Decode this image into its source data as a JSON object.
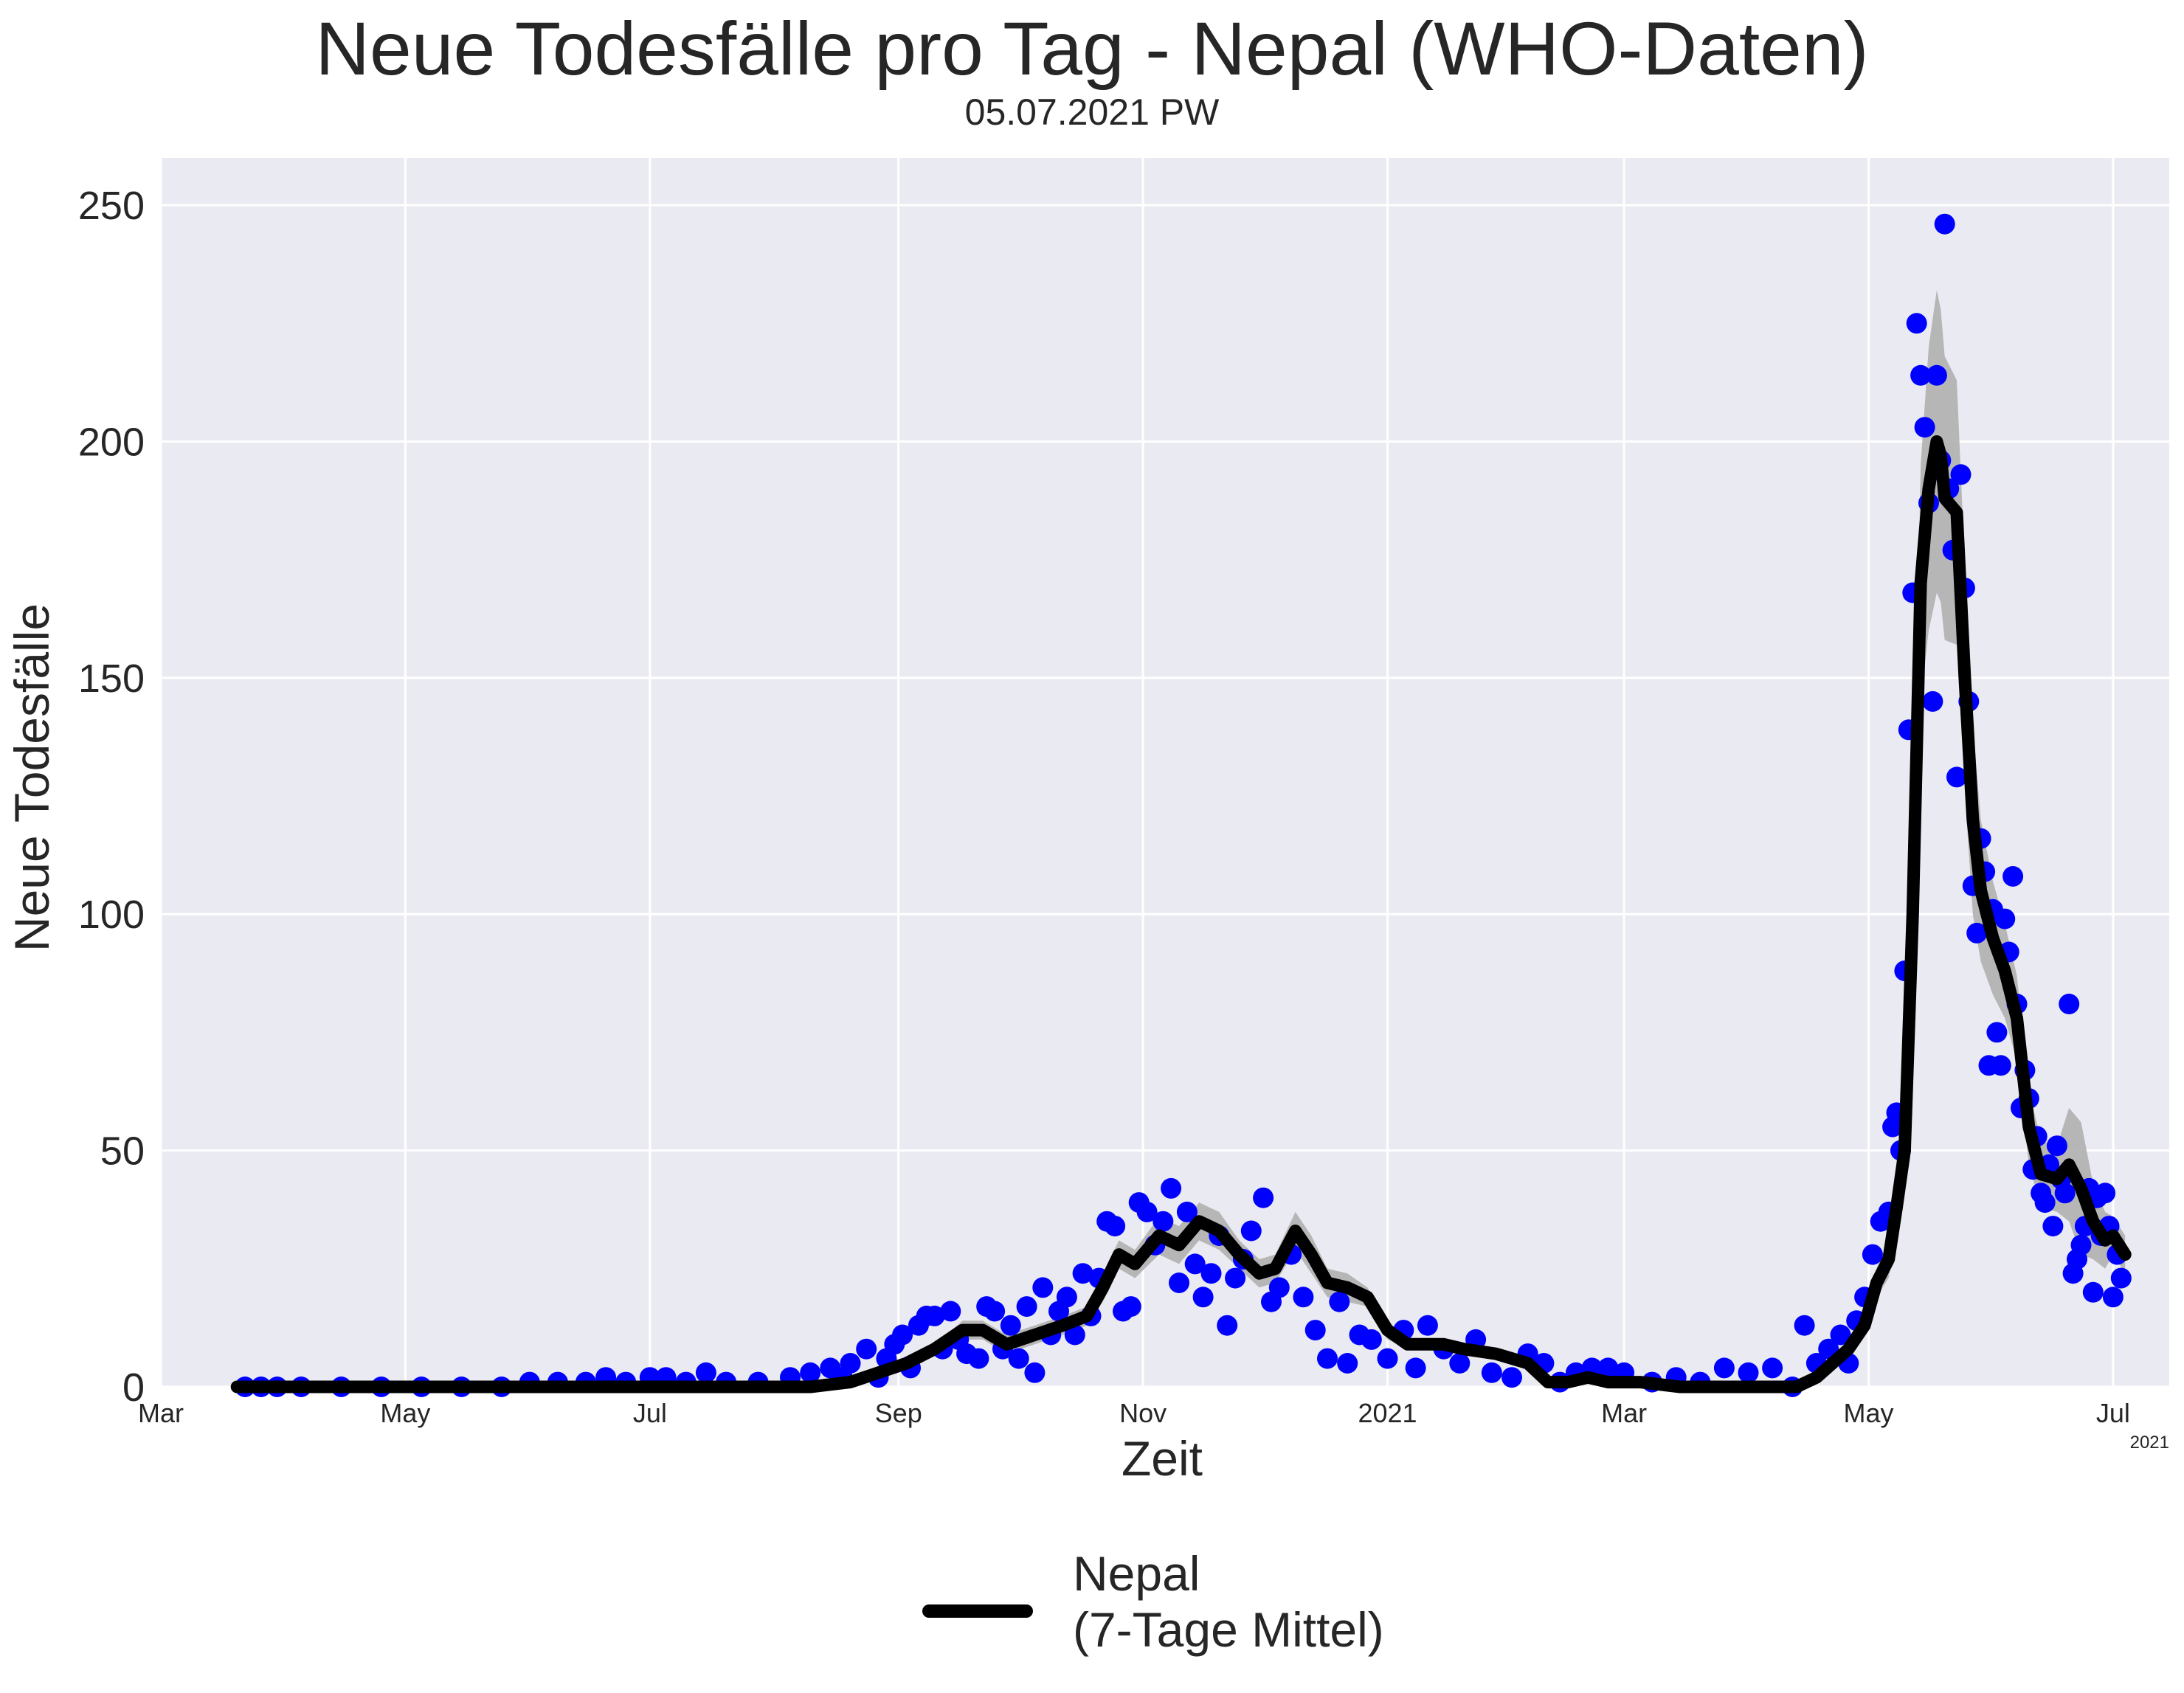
{
  "header": {
    "title": "Neue Todesfälle pro Tag - Nepal (WHO-Daten)",
    "subtitle": "05.07.2021 PW"
  },
  "legend": {
    "label": "Nepal\n(7-Tage Mittel)"
  },
  "colors": {
    "background": "#eaeaf2",
    "grid": "#ffffff",
    "points": "#0000ff",
    "line": "#000000",
    "band": "#b0b0b0"
  },
  "chart_data": {
    "type": "scatter",
    "title": "Neue Todesfälle pro Tag - Nepal (WHO-Daten)",
    "subtitle": "05.07.2021 PW",
    "xlabel": "Zeit",
    "ylabel": "Neue Todesfälle",
    "x_offset_label": "2021",
    "xlim": [
      "2020-03-01",
      "2021-07-15"
    ],
    "ylim": [
      0,
      260
    ],
    "yticks": [
      0,
      50,
      100,
      150,
      200,
      250
    ],
    "xticks": [
      {
        "date": "2020-03-01",
        "label": "Mar"
      },
      {
        "date": "2020-05-01",
        "label": "May"
      },
      {
        "date": "2020-07-01",
        "label": "Jul"
      },
      {
        "date": "2020-09-01",
        "label": "Sep"
      },
      {
        "date": "2020-11-01",
        "label": "Nov"
      },
      {
        "date": "2021-01-01",
        "label": "2021"
      },
      {
        "date": "2021-03-01",
        "label": "Mar"
      },
      {
        "date": "2021-05-01",
        "label": "May"
      },
      {
        "date": "2021-07-01",
        "label": "Jul"
      }
    ],
    "grid": true,
    "legend_position": "bottom-center",
    "series": [
      {
        "name": "Nepal\n(7-Tage Mittel)",
        "kind": "line_with_band",
        "points": [
          [
            "2020-03-20",
            0
          ],
          [
            "2020-05-15",
            0
          ],
          [
            "2020-07-15",
            0
          ],
          [
            "2020-08-10",
            0
          ],
          [
            "2020-08-20",
            1
          ],
          [
            "2020-08-27",
            3
          ],
          [
            "2020-09-03",
            5
          ],
          [
            "2020-09-10",
            8
          ],
          [
            "2020-09-17",
            12
          ],
          [
            "2020-09-22",
            12
          ],
          [
            "2020-09-28",
            9
          ],
          [
            "2020-10-05",
            11
          ],
          [
            "2020-10-12",
            13
          ],
          [
            "2020-10-18",
            15
          ],
          [
            "2020-10-22",
            21
          ],
          [
            "2020-10-26",
            28
          ],
          [
            "2020-10-30",
            26
          ],
          [
            "2020-11-05",
            32
          ],
          [
            "2020-11-10",
            30
          ],
          [
            "2020-11-15",
            35
          ],
          [
            "2020-11-20",
            33
          ],
          [
            "2020-11-25",
            28
          ],
          [
            "2020-11-30",
            24
          ],
          [
            "2020-12-04",
            25
          ],
          [
            "2020-12-09",
            33
          ],
          [
            "2020-12-13",
            28
          ],
          [
            "2020-12-17",
            22
          ],
          [
            "2020-12-22",
            21
          ],
          [
            "2020-12-27",
            19
          ],
          [
            "2021-01-01",
            12
          ],
          [
            "2021-01-06",
            9
          ],
          [
            "2021-01-15",
            9
          ],
          [
            "2021-01-20",
            8
          ],
          [
            "2021-01-28",
            7
          ],
          [
            "2021-02-05",
            5
          ],
          [
            "2021-02-10",
            1
          ],
          [
            "2021-02-15",
            1
          ],
          [
            "2021-02-20",
            2
          ],
          [
            "2021-02-25",
            1
          ],
          [
            "2021-03-05",
            1
          ],
          [
            "2021-03-15",
            0
          ],
          [
            "2021-04-01",
            0
          ],
          [
            "2021-04-13",
            0
          ],
          [
            "2021-04-18",
            2
          ],
          [
            "2021-04-22",
            5
          ],
          [
            "2021-04-26",
            8
          ],
          [
            "2021-04-30",
            13
          ],
          [
            "2021-05-03",
            22
          ],
          [
            "2021-05-06",
            27
          ],
          [
            "2021-05-08",
            38
          ],
          [
            "2021-05-10",
            50
          ],
          [
            "2021-05-12",
            100
          ],
          [
            "2021-05-14",
            170
          ],
          [
            "2021-05-16",
            190
          ],
          [
            "2021-05-18",
            200
          ],
          [
            "2021-05-19",
            197
          ],
          [
            "2021-05-20",
            188
          ],
          [
            "2021-05-23",
            185
          ],
          [
            "2021-05-25",
            150
          ],
          [
            "2021-05-27",
            120
          ],
          [
            "2021-05-29",
            105
          ],
          [
            "2021-06-01",
            95
          ],
          [
            "2021-06-04",
            88
          ],
          [
            "2021-06-07",
            78
          ],
          [
            "2021-06-10",
            55
          ],
          [
            "2021-06-13",
            45
          ],
          [
            "2021-06-17",
            44
          ],
          [
            "2021-06-20",
            47
          ],
          [
            "2021-06-23",
            42
          ],
          [
            "2021-06-26",
            35
          ],
          [
            "2021-06-29",
            31
          ],
          [
            "2021-07-01",
            32
          ],
          [
            "2021-07-04",
            28
          ]
        ],
        "band_halfwidth": [
          0,
          0,
          0,
          0,
          1,
          1,
          1,
          1,
          2,
          2,
          2,
          2,
          2,
          2,
          3,
          3,
          3,
          4,
          4,
          4,
          4,
          3,
          3,
          3,
          4,
          4,
          3,
          3,
          2,
          2,
          1,
          1,
          1,
          1,
          1,
          1,
          1,
          1,
          1,
          1,
          0,
          0,
          0,
          1,
          1,
          1,
          2,
          3,
          4,
          5,
          7,
          15,
          25,
          30,
          32,
          31,
          30,
          28,
          24,
          20,
          15,
          12,
          10,
          9,
          8,
          7,
          7,
          12,
          14,
          8,
          6,
          4,
          4
        ]
      },
      {
        "name": "",
        "kind": "scatter",
        "points": [
          [
            "2020-03-22",
            0
          ],
          [
            "2020-03-26",
            0
          ],
          [
            "2020-03-30",
            0
          ],
          [
            "2020-04-05",
            0
          ],
          [
            "2020-04-15",
            0
          ],
          [
            "2020-04-25",
            0
          ],
          [
            "2020-05-05",
            0
          ],
          [
            "2020-05-15",
            0
          ],
          [
            "2020-05-25",
            0
          ],
          [
            "2020-06-01",
            1
          ],
          [
            "2020-06-08",
            1
          ],
          [
            "2020-06-15",
            1
          ],
          [
            "2020-06-20",
            2
          ],
          [
            "2020-06-25",
            1
          ],
          [
            "2020-07-01",
            2
          ],
          [
            "2020-07-05",
            2
          ],
          [
            "2020-07-10",
            1
          ],
          [
            "2020-07-15",
            3
          ],
          [
            "2020-07-20",
            1
          ],
          [
            "2020-07-28",
            1
          ],
          [
            "2020-08-05",
            2
          ],
          [
            "2020-08-10",
            3
          ],
          [
            "2020-08-15",
            4
          ],
          [
            "2020-08-18",
            2
          ],
          [
            "2020-08-20",
            5
          ],
          [
            "2020-08-24",
            8
          ],
          [
            "2020-08-27",
            2
          ],
          [
            "2020-08-29",
            6
          ],
          [
            "2020-08-31",
            9
          ],
          [
            "2020-09-02",
            11
          ],
          [
            "2020-09-04",
            4
          ],
          [
            "2020-09-06",
            13
          ],
          [
            "2020-09-08",
            15
          ],
          [
            "2020-09-10",
            15
          ],
          [
            "2020-09-12",
            8
          ],
          [
            "2020-09-14",
            16
          ],
          [
            "2020-09-16",
            10
          ],
          [
            "2020-09-18",
            7
          ],
          [
            "2020-09-21",
            6
          ],
          [
            "2020-09-23",
            17
          ],
          [
            "2020-09-25",
            16
          ],
          [
            "2020-09-27",
            8
          ],
          [
            "2020-09-29",
            13
          ],
          [
            "2020-10-01",
            6
          ],
          [
            "2020-10-03",
            17
          ],
          [
            "2020-10-05",
            3
          ],
          [
            "2020-10-07",
            21
          ],
          [
            "2020-10-09",
            11
          ],
          [
            "2020-10-11",
            16
          ],
          [
            "2020-10-13",
            19
          ],
          [
            "2020-10-15",
            11
          ],
          [
            "2020-10-17",
            24
          ],
          [
            "2020-10-19",
            15
          ],
          [
            "2020-10-21",
            23
          ],
          [
            "2020-10-23",
            35
          ],
          [
            "2020-10-25",
            34
          ],
          [
            "2020-10-27",
            16
          ],
          [
            "2020-10-29",
            17
          ],
          [
            "2020-10-31",
            39
          ],
          [
            "2020-11-02",
            37
          ],
          [
            "2020-11-04",
            30
          ],
          [
            "2020-11-06",
            35
          ],
          [
            "2020-11-08",
            42
          ],
          [
            "2020-11-10",
            22
          ],
          [
            "2020-11-12",
            37
          ],
          [
            "2020-11-14",
            26
          ],
          [
            "2020-11-16",
            19
          ],
          [
            "2020-11-18",
            24
          ],
          [
            "2020-11-20",
            32
          ],
          [
            "2020-11-22",
            13
          ],
          [
            "2020-11-24",
            23
          ],
          [
            "2020-11-26",
            27
          ],
          [
            "2020-11-28",
            33
          ],
          [
            "2020-12-01",
            40
          ],
          [
            "2020-12-03",
            18
          ],
          [
            "2020-12-05",
            21
          ],
          [
            "2020-12-08",
            28
          ],
          [
            "2020-12-11",
            19
          ],
          [
            "2020-12-14",
            12
          ],
          [
            "2020-12-17",
            6
          ],
          [
            "2020-12-20",
            18
          ],
          [
            "2020-12-22",
            5
          ],
          [
            "2020-12-25",
            11
          ],
          [
            "2020-12-28",
            10
          ],
          [
            "2021-01-01",
            6
          ],
          [
            "2021-01-05",
            12
          ],
          [
            "2021-01-08",
            4
          ],
          [
            "2021-01-11",
            13
          ],
          [
            "2021-01-15",
            8
          ],
          [
            "2021-01-19",
            5
          ],
          [
            "2021-01-23",
            10
          ],
          [
            "2021-01-27",
            3
          ],
          [
            "2021-02-01",
            2
          ],
          [
            "2021-02-05",
            7
          ],
          [
            "2021-02-09",
            5
          ],
          [
            "2021-02-13",
            1
          ],
          [
            "2021-02-17",
            3
          ],
          [
            "2021-02-21",
            4
          ],
          [
            "2021-02-25",
            4
          ],
          [
            "2021-03-01",
            3
          ],
          [
            "2021-03-08",
            1
          ],
          [
            "2021-03-14",
            2
          ],
          [
            "2021-03-20",
            1
          ],
          [
            "2021-03-26",
            4
          ],
          [
            "2021-04-01",
            3
          ],
          [
            "2021-04-07",
            4
          ],
          [
            "2021-04-12",
            0
          ],
          [
            "2021-04-15",
            13
          ],
          [
            "2021-04-18",
            5
          ],
          [
            "2021-04-21",
            8
          ],
          [
            "2021-04-24",
            11
          ],
          [
            "2021-04-26",
            5
          ],
          [
            "2021-04-28",
            14
          ],
          [
            "2021-04-30",
            19
          ],
          [
            "2021-05-02",
            28
          ],
          [
            "2021-05-04",
            35
          ],
          [
            "2021-05-06",
            37
          ],
          [
            "2021-05-07",
            55
          ],
          [
            "2021-05-08",
            58
          ],
          [
            "2021-05-09",
            50
          ],
          [
            "2021-05-10",
            88
          ],
          [
            "2021-05-11",
            139
          ],
          [
            "2021-05-12",
            168
          ],
          [
            "2021-05-13",
            225
          ],
          [
            "2021-05-14",
            214
          ],
          [
            "2021-05-15",
            203
          ],
          [
            "2021-05-16",
            187
          ],
          [
            "2021-05-17",
            145
          ],
          [
            "2021-05-18",
            214
          ],
          [
            "2021-05-19",
            196
          ],
          [
            "2021-05-20",
            246
          ],
          [
            "2021-05-21",
            190
          ],
          [
            "2021-05-22",
            177
          ],
          [
            "2021-05-23",
            129
          ],
          [
            "2021-05-24",
            193
          ],
          [
            "2021-05-25",
            169
          ],
          [
            "2021-05-26",
            145
          ],
          [
            "2021-05-27",
            106
          ],
          [
            "2021-05-28",
            96
          ],
          [
            "2021-05-29",
            116
          ],
          [
            "2021-05-30",
            109
          ],
          [
            "2021-05-31",
            68
          ],
          [
            "2021-06-01",
            101
          ],
          [
            "2021-06-02",
            75
          ],
          [
            "2021-06-03",
            68
          ],
          [
            "2021-06-04",
            99
          ],
          [
            "2021-06-05",
            92
          ],
          [
            "2021-06-06",
            108
          ],
          [
            "2021-06-07",
            81
          ],
          [
            "2021-06-08",
            59
          ],
          [
            "2021-06-09",
            67
          ],
          [
            "2021-06-10",
            61
          ],
          [
            "2021-06-11",
            46
          ],
          [
            "2021-06-12",
            53
          ],
          [
            "2021-06-13",
            41
          ],
          [
            "2021-06-14",
            39
          ],
          [
            "2021-06-15",
            47
          ],
          [
            "2021-06-16",
            34
          ],
          [
            "2021-06-17",
            51
          ],
          [
            "2021-06-18",
            44
          ],
          [
            "2021-06-19",
            41
          ],
          [
            "2021-06-20",
            81
          ],
          [
            "2021-06-21",
            24
          ],
          [
            "2021-06-22",
            27
          ],
          [
            "2021-06-23",
            30
          ],
          [
            "2021-06-24",
            34
          ],
          [
            "2021-06-25",
            42
          ],
          [
            "2021-06-26",
            20
          ],
          [
            "2021-06-27",
            40
          ],
          [
            "2021-06-28",
            32
          ],
          [
            "2021-06-29",
            41
          ],
          [
            "2021-06-30",
            34
          ],
          [
            "2021-07-01",
            19
          ],
          [
            "2021-07-02",
            28
          ],
          [
            "2021-07-03",
            23
          ]
        ]
      }
    ]
  }
}
